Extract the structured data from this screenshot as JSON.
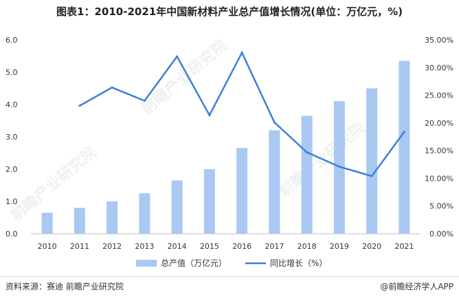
{
  "header": {
    "title": "图表1：2010-2021年中国新材料产业总产值增长情况(单位：万亿元，%)"
  },
  "watermark": {
    "text": "前瞻产业研究院"
  },
  "footer": {
    "source": "资料来源：赛迪 前瞻产业研究院",
    "brand": "@前瞻经济学人APP"
  },
  "colors": {
    "bar": "#a9c8f2",
    "line": "#3c7fdc",
    "axis": "#bfbfbf"
  },
  "chart_data": {
    "type": "bar+line",
    "title": "图表1：2010-2021年中国新材料产业总产值增长情况(单位：万亿元，%)",
    "categories": [
      "2010",
      "2011",
      "2012",
      "2013",
      "2014",
      "2015",
      "2016",
      "2017",
      "2018",
      "2019",
      "2020",
      "2021"
    ],
    "series": [
      {
        "name": "总产值（万亿元）",
        "type": "bar",
        "axis": "left",
        "values": [
          0.65,
          0.8,
          1.0,
          1.25,
          1.65,
          2.0,
          2.65,
          3.2,
          3.65,
          4.1,
          4.5,
          5.35
        ]
      },
      {
        "name": "同比增长（%）",
        "type": "line",
        "axis": "right",
        "values": [
          null,
          23.1,
          26.4,
          24.0,
          32.0,
          21.4,
          32.7,
          20.1,
          14.7,
          12.1,
          10.4,
          18.4
        ]
      }
    ],
    "ylim_left": [
      0,
      6
    ],
    "yticks_left": [
      "0.0",
      "1.0",
      "2.0",
      "3.0",
      "4.0",
      "5.0",
      "6.0"
    ],
    "ylim_right": [
      0,
      35
    ],
    "yticks_right": [
      "0.00%",
      "5.00%",
      "10.00%",
      "15.00%",
      "20.00%",
      "25.00%",
      "30.00%",
      "35.00%"
    ],
    "legend": [
      "总产值（万亿元）",
      "同比增长（%）"
    ],
    "legend_position": "bottom"
  }
}
